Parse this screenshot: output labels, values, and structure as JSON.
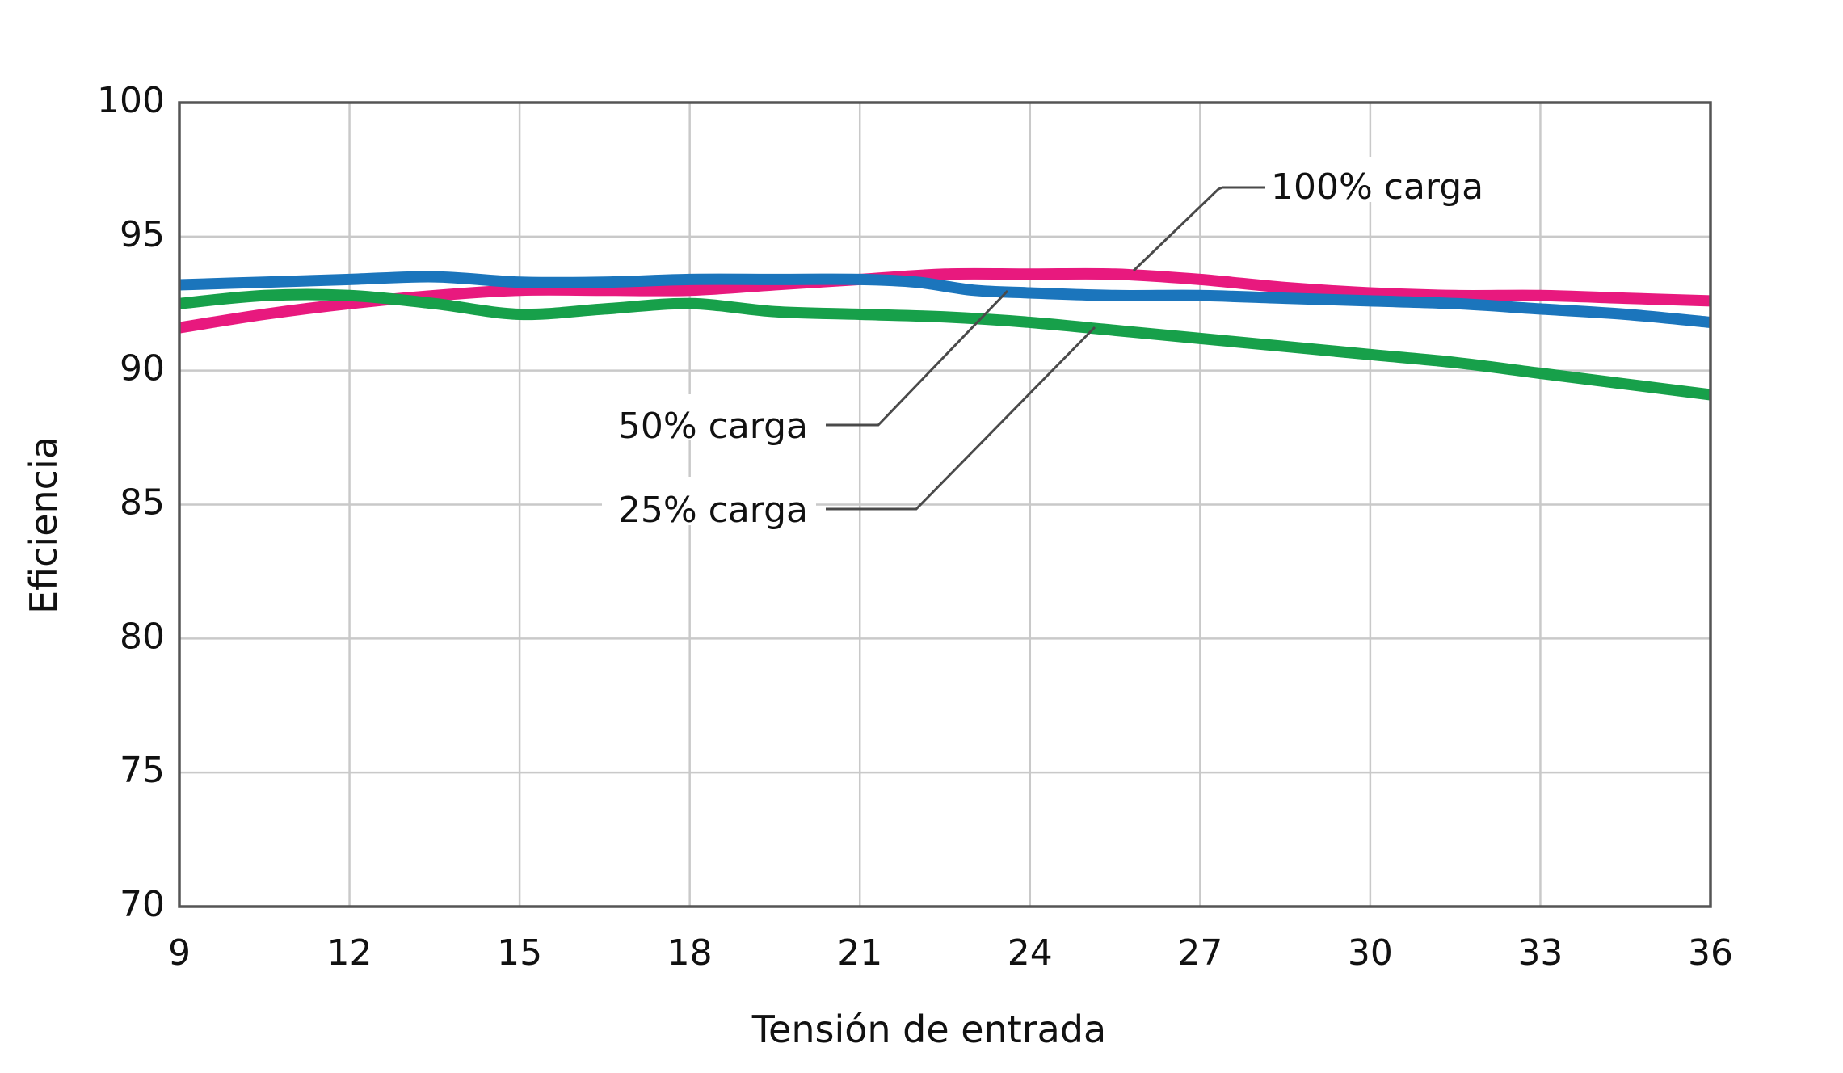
{
  "chart_data": {
    "type": "line",
    "title": "",
    "xlabel": "Tensión de entrada",
    "ylabel": "Eficiencia",
    "xlim": [
      9,
      36
    ],
    "ylim": [
      70,
      100
    ],
    "x_ticks": [
      "9",
      "12",
      "15",
      "18",
      "21",
      "24",
      "27",
      "30",
      "33",
      "36"
    ],
    "y_ticks": [
      "70",
      "75",
      "80",
      "85",
      "90",
      "95",
      "100"
    ],
    "grid": true,
    "legend": "none",
    "series": [
      {
        "name": "100% carga",
        "color": "#e8197e",
        "x": [
          9,
          10.5,
          12,
          13.5,
          15,
          16.5,
          18,
          19.5,
          21,
          22.5,
          24,
          25.5,
          27,
          28.5,
          30,
          31.5,
          33,
          34.5,
          36
        ],
        "y": [
          91.6,
          92.1,
          92.5,
          92.8,
          93.0,
          93.0,
          93.0,
          93.2,
          93.4,
          93.6,
          93.6,
          93.6,
          93.4,
          93.1,
          92.9,
          92.8,
          92.8,
          92.7,
          92.6
        ]
      },
      {
        "name": "50% carga",
        "color": "#1b75bc",
        "x": [
          9,
          10.5,
          12,
          13.5,
          15,
          16.5,
          18,
          19.5,
          21,
          22,
          23,
          24,
          25.5,
          27,
          28.5,
          30,
          31.5,
          33,
          34.5,
          36
        ],
        "y": [
          93.2,
          93.3,
          93.4,
          93.5,
          93.3,
          93.3,
          93.4,
          93.4,
          93.4,
          93.3,
          93.0,
          92.9,
          92.8,
          92.8,
          92.7,
          92.6,
          92.5,
          92.3,
          92.1,
          91.8
        ]
      },
      {
        "name": "25% carga",
        "color": "#17a04a",
        "x": [
          9,
          10.5,
          12,
          13.5,
          15,
          16.5,
          18,
          19.5,
          21,
          22.5,
          24,
          25.5,
          27,
          28.5,
          30,
          31.5,
          33,
          34.5,
          36
        ],
        "y": [
          92.5,
          92.8,
          92.8,
          92.5,
          92.1,
          92.3,
          92.5,
          92.2,
          92.1,
          92.0,
          91.8,
          91.5,
          91.2,
          90.9,
          90.6,
          90.3,
          89.9,
          89.5,
          89.1
        ]
      }
    ],
    "annotations": [
      {
        "text": "100% carga",
        "series": "100% carga"
      },
      {
        "text": "50% carga",
        "series": "50% carga"
      },
      {
        "text": "25% carga",
        "series": "25% carga"
      }
    ]
  }
}
